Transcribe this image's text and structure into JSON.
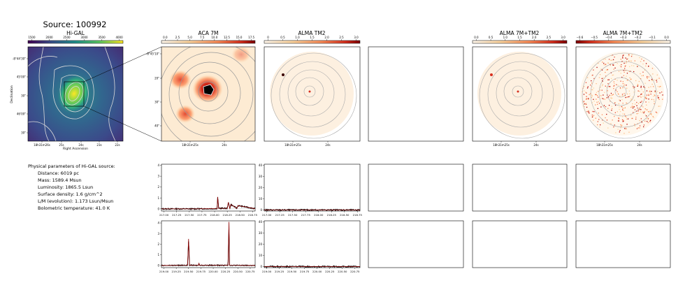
{
  "source_title": "Source: 100992",
  "panels": {
    "higal": {
      "title": "Hi-GAL",
      "colorbar_ticks": [
        "1500",
        "2000",
        "2500",
        "3000",
        "3500",
        "4000"
      ],
      "yticks": [
        "-8°44'30\"",
        "45'00\"",
        "30\"",
        "46'00\"",
        "30\""
      ],
      "xticks": [
        "18h31m26s",
        "25s",
        "24s",
        "23s",
        "22s"
      ],
      "ylabel": "Declination",
      "xlabel": "Right Ascension"
    },
    "aca": {
      "title": "ACA 7M",
      "colorbar_ticks": [
        "0.0",
        "2.5",
        "5.0",
        "7.5",
        "10.0",
        "12.5",
        "15.0",
        "17.5"
      ],
      "yticks": [
        "-8°45'10\"",
        "20\"",
        "30\"",
        "40\""
      ],
      "xticks": [
        "18h31m25s",
        "24s"
      ]
    },
    "tm2": {
      "title": "ALMA TM2",
      "colorbar_ticks": [
        "0",
        "0.5",
        "1.0",
        "1.5",
        "2.0",
        "2.5",
        "3.0"
      ],
      "xticks": [
        "18h31m25s",
        "24s"
      ]
    },
    "combo": {
      "title": "ALMA 7M+TM2",
      "colorbar_ticks": [
        "0.0",
        "0.5",
        "1.0",
        "1.5",
        "2.0",
        "2.5",
        "3.0"
      ],
      "xticks": [
        "18h31m25s",
        "24s"
      ]
    },
    "combo_neg": {
      "title": "ALMA 7M+TM2",
      "colorbar_ticks": [
        "−0.6",
        "−0.5",
        "−0.4",
        "−0.3",
        "−0.2",
        "−0.1",
        "0.0"
      ],
      "xticks": [
        "18h31m25s",
        "24s"
      ]
    }
  },
  "params": {
    "header": "Physical parameters of Hi-GAL source:",
    "lines": [
      "Distance: 6019 pc",
      "Mass: 1589.4 Msun",
      "Luminosity: 1865.5 Lsun",
      "Surface density: 1.6 g/cm^2",
      "L/M (evolution): 1.173 Lsun/Msun",
      "Bolometric temperature: 41.0 K"
    ]
  },
  "chart_data": [
    {
      "type": "line",
      "panel": "ACA 7M spectrum, upper",
      "x_ticks": [
        "217.00",
        "217.25",
        "217.50",
        "217.75",
        "218.00",
        "218.25",
        "218.50",
        "218.75"
      ],
      "y_ticks": [
        "0",
        "1",
        "2",
        "3",
        "4"
      ],
      "xlim": [
        216.95,
        218.8
      ],
      "ylim": [
        -0.2,
        4.1
      ],
      "x": [
        216.95,
        217.6,
        218.05,
        218.06,
        218.08,
        218.25,
        218.27,
        218.3,
        218.32,
        218.44,
        218.46,
        218.8
      ],
      "y": [
        0,
        0,
        0.02,
        1.1,
        0.05,
        0.05,
        0.6,
        0.05,
        0.4,
        0.05,
        0.3,
        0.02
      ],
      "noise": 0.06,
      "color": "#8b0000"
    },
    {
      "type": "line",
      "panel": "ALMA TM2 spectrum, upper",
      "x_ticks": [
        "217.00",
        "217.25",
        "217.50",
        "217.75",
        "218.00",
        "218.25",
        "218.50",
        "218.75"
      ],
      "y_ticks": [
        "0",
        "10",
        "20",
        "30",
        "40"
      ],
      "xlim": [
        216.95,
        218.8
      ],
      "ylim": [
        -1,
        41
      ],
      "x": [
        216.95,
        218.8
      ],
      "y": [
        0,
        0
      ],
      "noise": 0.6,
      "color": "#8b0000"
    },
    {
      "type": "line",
      "panel": "ACA 7M spectrum, lower",
      "x_ticks": [
        "219.00",
        "219.25",
        "219.50",
        "219.75",
        "220.00",
        "220.25",
        "220.50",
        "220.75"
      ],
      "y_ticks": [
        "0",
        "1",
        "2",
        "3",
        "4"
      ],
      "xlim": [
        218.95,
        220.85
      ],
      "ylim": [
        -0.2,
        4.2
      ],
      "x": [
        218.95,
        219.48,
        219.5,
        219.52,
        219.7,
        219.71,
        219.72,
        220.3,
        220.32,
        220.33,
        220.85
      ],
      "y": [
        0,
        0.02,
        2.5,
        0.02,
        0.02,
        0.2,
        0.02,
        0.02,
        4.1,
        0.02,
        0
      ],
      "noise": 0.05,
      "color": "#8b0000"
    },
    {
      "type": "line",
      "panel": "ALMA TM2 spectrum, lower",
      "x_ticks": [
        "219.00",
        "219.25",
        "219.50",
        "219.75",
        "220.00",
        "220.25",
        "220.50",
        "220.75"
      ],
      "y_ticks": [
        "0",
        "10",
        "20",
        "30",
        "40"
      ],
      "xlim": [
        218.95,
        220.85
      ],
      "ylim": [
        -1,
        41
      ],
      "x": [
        218.95,
        220.85
      ],
      "y": [
        0,
        0
      ],
      "noise": 0.6,
      "color": "#8b0000"
    }
  ]
}
